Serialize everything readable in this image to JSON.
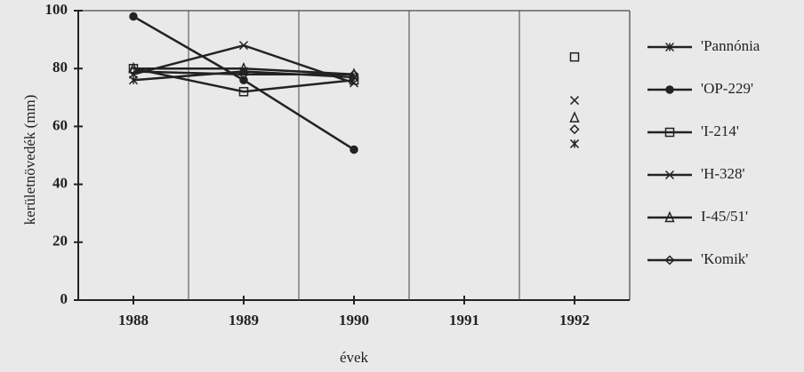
{
  "chart_data": {
    "type": "line",
    "ylabel": "kerületnövedék (mm)",
    "xlabel": "évek",
    "categories": [
      "1988",
      "1989",
      "1990",
      "1991",
      "1992"
    ],
    "series": [
      {
        "name": "'Pannónia",
        "color": "#222222",
        "marker": "asterisk",
        "values": [
          76,
          79,
          77,
          null,
          54
        ]
      },
      {
        "name": "'OP-229'",
        "color": "#222222",
        "marker": "dot",
        "values": [
          98,
          76,
          52,
          null,
          null
        ]
      },
      {
        "name": "'I-214'",
        "color": "#222222",
        "marker": "square",
        "values": [
          80,
          72,
          76,
          null,
          84
        ]
      },
      {
        "name": "'H-328'",
        "color": "#222222",
        "marker": "cross",
        "values": [
          78,
          88,
          75,
          null,
          69
        ]
      },
      {
        "name": "I-45/51'",
        "color": "#222222",
        "marker": "triangle",
        "values": [
          80,
          80,
          78,
          null,
          63
        ]
      },
      {
        "name": "'Komik'",
        "color": "#222222",
        "marker": "diamond",
        "values": [
          79,
          78,
          78,
          null,
          59
        ]
      }
    ],
    "ylim": [
      0,
      100
    ],
    "yticks": [
      0,
      20,
      40,
      60,
      80,
      100
    ]
  }
}
